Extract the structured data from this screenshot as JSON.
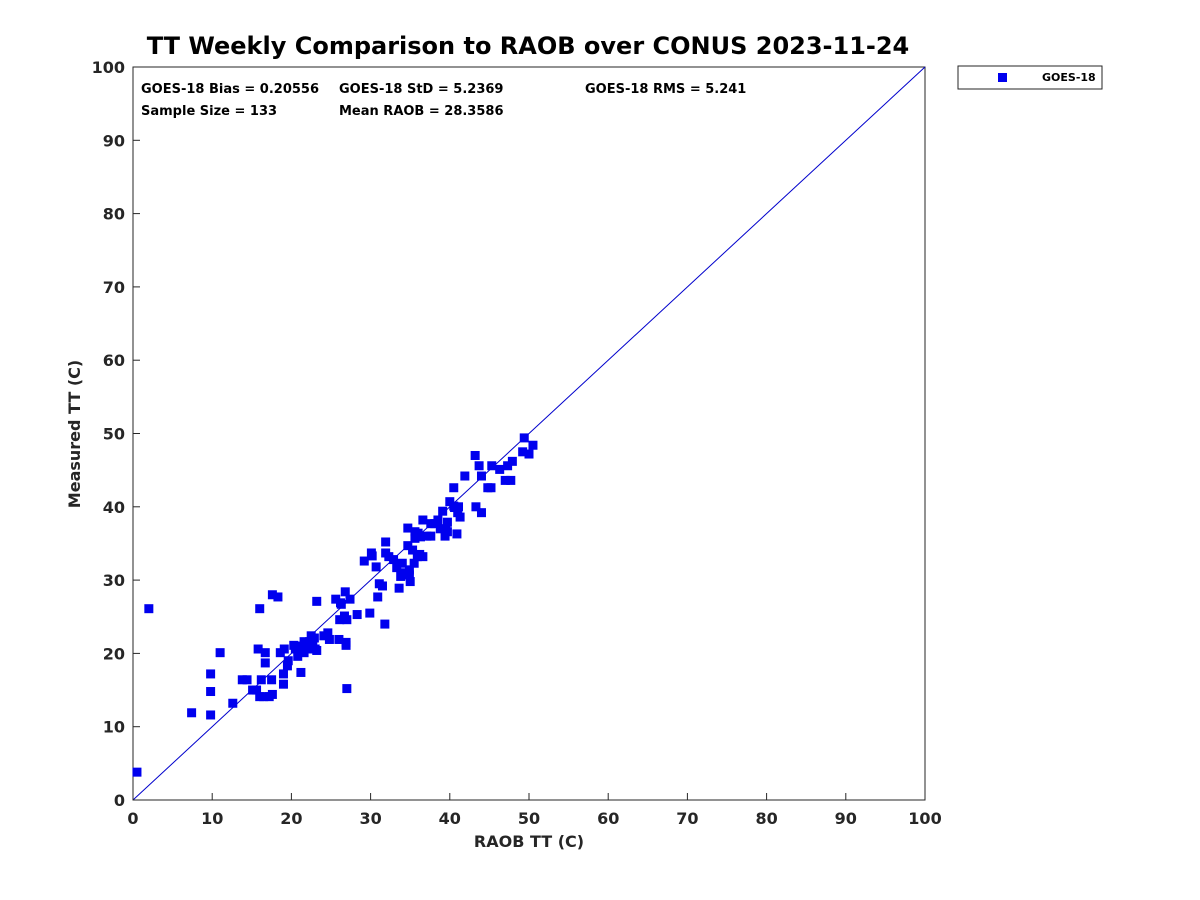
{
  "chart_data": {
    "type": "scatter",
    "title": "TT Weekly Comparison to RAOB over CONUS 2023-11-24",
    "xlabel": "RAOB TT (C)",
    "ylabel": "Measured TT (C)",
    "xlim": [
      0,
      100
    ],
    "ylim": [
      0,
      100
    ],
    "xticks": [
      0,
      10,
      20,
      30,
      40,
      50,
      60,
      70,
      80,
      90,
      100
    ],
    "yticks": [
      0,
      10,
      20,
      30,
      40,
      50,
      60,
      70,
      80,
      90,
      100
    ],
    "grid": false,
    "legend_position": "outside-top-right",
    "marker_color": "#0000ee",
    "line_color": "#0000cc",
    "reference_line": {
      "name": "one-to-one",
      "x": [
        0,
        100
      ],
      "y": [
        0,
        100
      ]
    },
    "stats": {
      "bias": "GOES-18 Bias = 0.20556",
      "std": "GOES-18 StD = 5.2369",
      "rms": "GOES-18 RMS = 5.241",
      "sample_size": "Sample Size = 133",
      "mean_raob": "Mean RAOB = 28.3586"
    },
    "series": [
      {
        "name": "GOES-18",
        "points": [
          [
            0.5,
            3.8
          ],
          [
            2.0,
            26.1
          ],
          [
            7.4,
            11.9
          ],
          [
            9.8,
            11.6
          ],
          [
            9.8,
            14.8
          ],
          [
            9.8,
            17.2
          ],
          [
            11.0,
            20.1
          ],
          [
            12.6,
            13.2
          ],
          [
            13.8,
            16.4
          ],
          [
            14.4,
            16.4
          ],
          [
            15.1,
            15.0
          ],
          [
            15.6,
            15.0
          ],
          [
            15.8,
            20.6
          ],
          [
            16.0,
            26.1
          ],
          [
            16.0,
            14.1
          ],
          [
            16.2,
            16.4
          ],
          [
            16.5,
            14.1
          ],
          [
            16.7,
            18.7
          ],
          [
            16.7,
            20.1
          ],
          [
            17.2,
            14.1
          ],
          [
            17.5,
            16.4
          ],
          [
            17.6,
            14.4
          ],
          [
            17.6,
            28.0
          ],
          [
            18.3,
            27.7
          ],
          [
            18.6,
            20.1
          ],
          [
            19.0,
            15.8
          ],
          [
            19.0,
            17.2
          ],
          [
            19.1,
            20.6
          ],
          [
            19.5,
            18.3
          ],
          [
            19.6,
            19.0
          ],
          [
            20.5,
            20.6
          ],
          [
            20.8,
            19.6
          ],
          [
            21.0,
            20.4
          ],
          [
            21.2,
            21.0
          ],
          [
            21.2,
            17.4
          ],
          [
            21.6,
            20.1
          ],
          [
            21.6,
            21.6
          ],
          [
            22.0,
            21.2
          ],
          [
            22.2,
            20.6
          ],
          [
            22.3,
            21.6
          ],
          [
            22.5,
            22.4
          ],
          [
            22.7,
            21.0
          ],
          [
            23.0,
            20.6
          ],
          [
            23.2,
            20.4
          ],
          [
            23.2,
            27.1
          ],
          [
            24.1,
            22.4
          ],
          [
            24.6,
            22.8
          ],
          [
            24.8,
            21.9
          ],
          [
            25.6,
            27.4
          ],
          [
            26.0,
            21.9
          ],
          [
            26.1,
            24.6
          ],
          [
            26.2,
            26.9
          ],
          [
            26.7,
            25.1
          ],
          [
            26.8,
            28.4
          ],
          [
            26.9,
            21.5
          ],
          [
            26.9,
            21.1
          ],
          [
            27.0,
            24.6
          ],
          [
            27.0,
            15.2
          ],
          [
            27.4,
            27.4
          ],
          [
            28.3,
            25.3
          ],
          [
            29.2,
            32.6
          ],
          [
            29.9,
            25.5
          ],
          [
            30.1,
            33.7
          ],
          [
            30.2,
            33.3
          ],
          [
            30.7,
            31.8
          ],
          [
            30.9,
            27.7
          ],
          [
            31.1,
            29.5
          ],
          [
            31.5,
            29.2
          ],
          [
            31.8,
            24.0
          ],
          [
            31.9,
            33.7
          ],
          [
            31.9,
            35.2
          ],
          [
            32.3,
            33.2
          ],
          [
            32.9,
            32.8
          ],
          [
            33.3,
            31.7
          ],
          [
            33.6,
            28.9
          ],
          [
            33.8,
            30.5
          ],
          [
            34.0,
            32.3
          ],
          [
            34.3,
            31.0
          ],
          [
            34.7,
            34.7
          ],
          [
            34.7,
            37.1
          ],
          [
            34.9,
            31.4
          ],
          [
            35.0,
            29.8
          ],
          [
            35.3,
            34.1
          ],
          [
            35.5,
            32.3
          ],
          [
            35.6,
            36.6
          ],
          [
            35.6,
            35.7
          ],
          [
            35.9,
            33.2
          ],
          [
            36.0,
            36.4
          ],
          [
            36.3,
            35.9
          ],
          [
            36.6,
            33.2
          ],
          [
            36.6,
            38.2
          ],
          [
            37.1,
            36.0
          ],
          [
            37.6,
            36.0
          ],
          [
            37.6,
            37.7
          ],
          [
            38.1,
            37.7
          ],
          [
            38.5,
            38.2
          ],
          [
            38.8,
            37.0
          ],
          [
            39.1,
            39.4
          ],
          [
            39.4,
            36.0
          ],
          [
            39.5,
            37.0
          ],
          [
            39.7,
            36.6
          ],
          [
            39.7,
            37.9
          ],
          [
            40.0,
            40.7
          ],
          [
            40.5,
            42.6
          ],
          [
            40.5,
            40.1
          ],
          [
            40.9,
            36.3
          ],
          [
            41.0,
            39.2
          ],
          [
            41.1,
            40.0
          ],
          [
            41.3,
            38.6
          ],
          [
            41.9,
            44.2
          ],
          [
            43.2,
            47.0
          ],
          [
            43.3,
            40.0
          ],
          [
            43.7,
            45.6
          ],
          [
            44.0,
            39.2
          ],
          [
            44.0,
            44.2
          ],
          [
            44.8,
            42.6
          ],
          [
            45.2,
            42.6
          ],
          [
            45.3,
            45.6
          ],
          [
            46.3,
            45.1
          ],
          [
            47.0,
            43.6
          ],
          [
            47.3,
            45.6
          ],
          [
            47.7,
            43.6
          ],
          [
            47.9,
            46.2
          ],
          [
            49.2,
            47.5
          ],
          [
            49.4,
            49.4
          ],
          [
            50.0,
            47.2
          ],
          [
            50.5,
            48.4
          ],
          [
            34.9,
            30.7
          ],
          [
            36.2,
            33.5
          ],
          [
            22.9,
            22.1
          ],
          [
            20.3,
            21.1
          ],
          [
            40.6,
            39.9
          ],
          [
            26.3,
            26.7
          ]
        ]
      }
    ]
  }
}
